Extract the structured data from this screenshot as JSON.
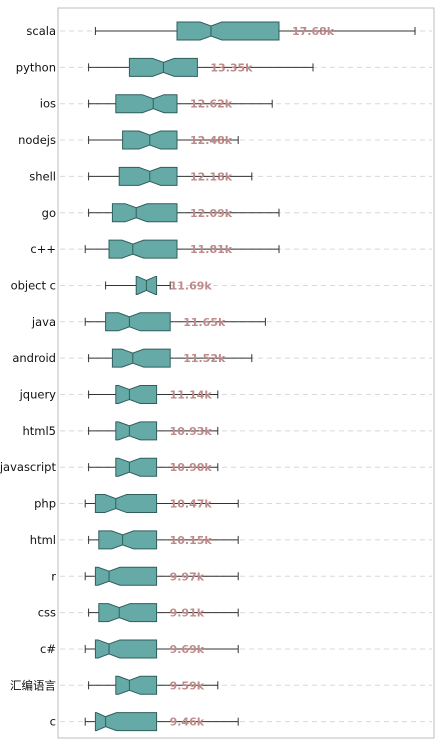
{
  "chart_data": {
    "type": "boxplot",
    "orientation": "horizontal",
    "notched": true,
    "grid": true,
    "colors": {
      "box_fill": "#66aaa8",
      "box_stroke": "#2f5f5d",
      "value_label": "#bf8a8a",
      "whisker": "#333333"
    },
    "categories": [
      "scala",
      "python",
      "ios",
      "nodejs",
      "shell",
      "go",
      "c++",
      "object c",
      "java",
      "android",
      "jquery",
      "html5",
      "javascript",
      "php",
      "html",
      "r",
      "css",
      "c#",
      "汇编语言",
      "c"
    ],
    "value_labels": [
      "17.68k",
      "13.35k",
      "12.62k",
      "12.48k",
      "12.18k",
      "12.09k",
      "11.81k",
      "11.69k",
      "11.65k",
      "11.52k",
      "11.14k",
      "10.93k",
      "10.90k",
      "10.47k",
      "10.15k",
      "9.97k",
      "9.91k",
      "9.69k",
      "9.59k",
      "9.46k"
    ],
    "boxes": [
      {
        "min": 3,
        "q1": 15,
        "median": 20,
        "q3": 30,
        "max": 50
      },
      {
        "min": 2,
        "q1": 8,
        "median": 13,
        "q3": 18,
        "max": 35
      },
      {
        "min": 2,
        "q1": 6,
        "median": 11.5,
        "q3": 15,
        "max": 29
      },
      {
        "min": 2,
        "q1": 7,
        "median": 11,
        "q3": 15,
        "max": 24
      },
      {
        "min": 2,
        "q1": 6.5,
        "median": 11,
        "q3": 15,
        "max": 26
      },
      {
        "min": 2,
        "q1": 5.5,
        "median": 9,
        "q3": 15,
        "max": 30
      },
      {
        "min": 1.5,
        "q1": 5,
        "median": 8.5,
        "q3": 15,
        "max": 30
      },
      {
        "min": 4.5,
        "q1": 9,
        "median": 10.5,
        "q3": 12,
        "max": 14
      },
      {
        "min": 1.5,
        "q1": 4.5,
        "median": 8,
        "q3": 14,
        "max": 28
      },
      {
        "min": 2,
        "q1": 5.5,
        "median": 8.5,
        "q3": 14,
        "max": 26
      },
      {
        "min": 2,
        "q1": 6,
        "median": 8,
        "q3": 12,
        "max": 21
      },
      {
        "min": 2,
        "q1": 6,
        "median": 8,
        "q3": 12,
        "max": 21
      },
      {
        "min": 2,
        "q1": 6,
        "median": 8,
        "q3": 12,
        "max": 21
      },
      {
        "min": 1.5,
        "q1": 3,
        "median": 6,
        "q3": 12,
        "max": 24
      },
      {
        "min": 2,
        "q1": 3.5,
        "median": 7,
        "q3": 12,
        "max": 24
      },
      {
        "min": 1.5,
        "q1": 3,
        "median": 5,
        "q3": 12,
        "max": 24
      },
      {
        "min": 2,
        "q1": 3.5,
        "median": 6.5,
        "q3": 12,
        "max": 24
      },
      {
        "min": 1.5,
        "q1": 3,
        "median": 5,
        "q3": 12,
        "max": 24
      },
      {
        "min": 2,
        "q1": 6,
        "median": 8,
        "q3": 12,
        "max": 21
      },
      {
        "min": 1.5,
        "q1": 3,
        "median": 4.5,
        "q3": 12,
        "max": 24
      }
    ]
  }
}
